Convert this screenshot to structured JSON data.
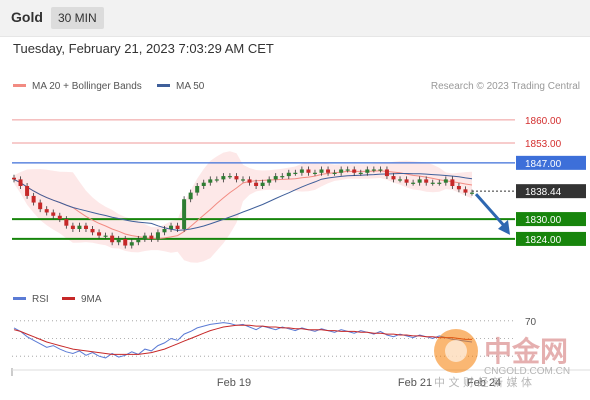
{
  "header": {
    "symbol": "Gold",
    "timeframe": "30 MIN"
  },
  "datetime": "Tuesday, February 21, 2023 7:03:29 AM CET",
  "legend": {
    "ma20_label": "MA 20 + Bollinger Bands",
    "ma50_label": "MA 50",
    "credit": "Research © 2023 Trading Central"
  },
  "rsi_legend": {
    "rsi_label": "RSI",
    "ma_label": "9MA"
  },
  "watermark": {
    "cn": "中金网",
    "url": "CNGOLD.COM.CN",
    "slogan": "中 文 财 经 新 媒 体"
  },
  "colors": {
    "resistance": "#ef9a9a",
    "resistance_text": "#d32f2f",
    "pivot": "#3d6fd9",
    "support": "#17850c",
    "candle_up": "#2e7d32",
    "candle_down": "#c62828",
    "ma20": "#f28b82",
    "ma50": "#3f5f9a",
    "bollinger": "#fde2e2",
    "rsi": "#5b7bd5",
    "rsi_ma": "#c62828",
    "arrow": "#2e67b1"
  },
  "icons": {
    "logo": "cngold-logo-icon"
  },
  "chart_data": [
    {
      "type": "candlestick",
      "title": "",
      "x_ticks": [
        "Feb 19",
        "Feb 21",
        "Feb 24"
      ],
      "ylim": [
        1814,
        1866
      ],
      "levels": [
        {
          "label": "1860.00",
          "value": 1860,
          "kind": "resistance"
        },
        {
          "label": "1853.00",
          "value": 1853,
          "kind": "resistance"
        },
        {
          "label": "1847.00",
          "value": 1847,
          "kind": "pivot"
        },
        {
          "label": "1838.44",
          "value": 1838.44,
          "kind": "last"
        },
        {
          "label": "1830.00",
          "value": 1830,
          "kind": "support"
        },
        {
          "label": "1824.00",
          "value": 1824,
          "kind": "support"
        }
      ],
      "close": [
        1842,
        1840,
        1837,
        1835,
        1833,
        1832,
        1831,
        1830,
        1828,
        1827,
        1828,
        1827,
        1826,
        1825,
        1825,
        1823,
        1824,
        1822,
        1823,
        1824,
        1825,
        1824,
        1826,
        1827,
        1828,
        1827,
        1836,
        1838,
        1840,
        1841,
        1842,
        1842,
        1843,
        1843,
        1842,
        1842,
        1841,
        1840,
        1841,
        1842,
        1843,
        1843,
        1844,
        1844,
        1845,
        1844,
        1844,
        1845,
        1844,
        1844,
        1845,
        1845,
        1844,
        1844,
        1845,
        1845,
        1845,
        1843,
        1842,
        1842,
        1841,
        1841,
        1842,
        1841,
        1841,
        1841,
        1842,
        1840,
        1839,
        1838,
        1838
      ],
      "projection": {
        "from": 1838.44,
        "to": 1824
      }
    },
    {
      "type": "line",
      "title": "",
      "series_names": [
        "RSI",
        "9MA"
      ],
      "level": 70,
      "rsi": [
        62,
        58,
        52,
        48,
        44,
        40,
        42,
        38,
        35,
        33,
        36,
        31,
        34,
        30,
        28,
        33,
        29,
        31,
        35,
        32,
        38,
        36,
        42,
        45,
        50,
        48,
        55,
        58,
        62,
        64,
        66,
        67,
        68,
        67,
        65,
        66,
        63,
        60,
        64,
        62,
        60,
        63,
        61,
        59,
        62,
        60,
        58,
        61,
        59,
        57,
        60,
        58,
        56,
        59,
        57,
        55,
        58,
        54,
        52,
        55,
        53,
        51,
        54,
        52,
        50,
        53,
        51,
        49,
        48,
        47,
        46
      ],
      "rsi_ma": [
        60,
        58,
        55,
        52,
        49,
        46,
        44,
        42,
        40,
        38,
        37,
        36,
        35,
        34,
        33,
        32,
        32,
        32,
        32,
        32,
        33,
        34,
        36,
        38,
        41,
        44,
        47,
        50,
        53,
        56,
        59,
        61,
        63,
        64,
        65,
        65,
        65,
        64,
        64,
        63,
        63,
        62,
        62,
        61,
        61,
        60,
        60,
        60,
        59,
        59,
        58,
        58,
        58,
        57,
        57,
        56,
        56,
        55,
        55,
        54,
        54,
        53,
        53,
        52,
        52,
        51,
        51,
        51,
        50,
        49,
        49
      ]
    }
  ]
}
